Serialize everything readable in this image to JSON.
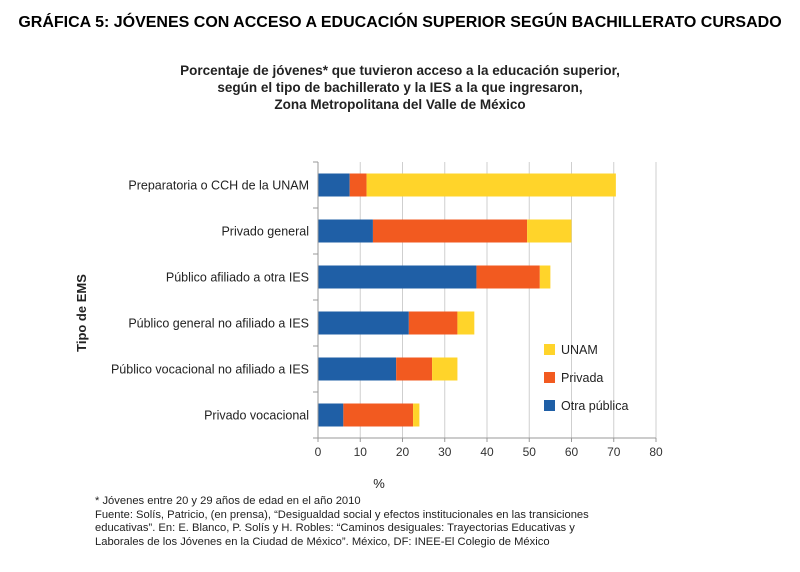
{
  "main_title": "GRÁFICA 5: JÓVENES CON ACCESO A EDUCACIÓN SUPERIOR SEGÚN BACHILLERATO CURSADO",
  "chart_data": {
    "type": "bar",
    "orientation": "horizontal",
    "stacked": true,
    "title_lines": [
      "Porcentaje de jóvenes* que tuvieron acceso a la educación superior,",
      "según el tipo de bachillerato y la IES a la que ingresaron,",
      "Zona Metropolitana del Valle de México"
    ],
    "categories": [
      "Preparatoria o CCH de la UNAM",
      "Privado general",
      "Público afiliado a otra IES",
      "Público general no afiliado a IES",
      "Público vocacional no afiliado a IES",
      "Privado vocacional"
    ],
    "series": [
      {
        "name": "Otra pública",
        "color": "#1f5fa6",
        "values": [
          7.5,
          13,
          37.5,
          21.5,
          18.5,
          6
        ]
      },
      {
        "name": "Privada",
        "color": "#f25a20",
        "values": [
          4,
          36.5,
          15,
          11.5,
          8.5,
          16.5
        ]
      },
      {
        "name": "UNAM",
        "color": "#ffd42a",
        "values": [
          59,
          10.5,
          2.5,
          4,
          6,
          1.5
        ]
      }
    ],
    "legend_order": [
      "UNAM",
      "Privada",
      "Otra pública"
    ],
    "legend_position": "right-bottom",
    "xlabel": "%",
    "ylabel": "Tipo de EMS",
    "xlim": [
      0,
      80
    ],
    "xticks": [
      "0",
      "10",
      "20",
      "30",
      "40",
      "50",
      "60",
      "70",
      "80"
    ],
    "grid": true
  },
  "notes": [
    "* Jóvenes entre 20 y 29 años de edad en el año 2010",
    "Fuente: Solís, Patricio, (en prensa), “Desigualdad social y efectos institucionales en las transiciones",
    "educativas”. En: E. Blanco, P. Solís y H. Robles: “Caminos desiguales: Trayectorias Educativas y",
    "Laborales de los Jóvenes en la Ciudad de México”. México, DF: INEE-El Colegio de México"
  ]
}
